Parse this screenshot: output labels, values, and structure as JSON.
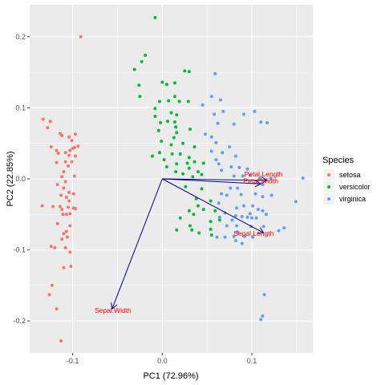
{
  "chart_data": {
    "type": "scatter",
    "title": "",
    "xlabel": "PC1 (72.96%)",
    "ylabel": "PC2 (22.85%)",
    "xlim": [
      -0.148,
      0.168
    ],
    "ylim": [
      -0.245,
      0.245
    ],
    "x_ticks": [
      -0.1,
      0.0,
      0.1
    ],
    "x_tick_labels": [
      "-0.1",
      "0.0",
      "0.1"
    ],
    "y_ticks": [
      -0.2,
      -0.1,
      0.0,
      0.1,
      0.2
    ],
    "y_tick_labels": [
      "-0.2",
      "-0.1",
      "0.0",
      "0.1",
      "0.2"
    ],
    "grid": true,
    "panel_background": "#ebebeb",
    "grid_color": "#ffffff",
    "arrow_color": "#00008b",
    "arrow_label_color": "#ff0000",
    "legend": {
      "title": "Species",
      "placement": "right",
      "entries": [
        {
          "name": "setosa",
          "color": "#f8766d"
        },
        {
          "name": "versicolor",
          "color": "#00ba38"
        },
        {
          "name": "virginica",
          "color": "#619cff"
        }
      ]
    },
    "series": [
      {
        "name": "setosa",
        "color": "#f8766d",
        "points": [
          [
            -0.091,
            0.2
          ],
          [
            -0.133,
            0.084
          ],
          [
            -0.125,
            0.081
          ],
          [
            -0.128,
            0.072
          ],
          [
            -0.114,
            0.064
          ],
          [
            -0.112,
            0.061
          ],
          [
            -0.104,
            0.059
          ],
          [
            -0.097,
            0.063
          ],
          [
            -0.101,
            0.054
          ],
          [
            -0.1,
            0.043
          ],
          [
            -0.103,
            0.04
          ],
          [
            -0.094,
            0.046
          ],
          [
            -0.098,
            0.044
          ],
          [
            -0.124,
            0.045
          ],
          [
            -0.118,
            0.04
          ],
          [
            -0.108,
            0.037
          ],
          [
            -0.104,
            0.033
          ],
          [
            -0.116,
            0.036
          ],
          [
            -0.097,
            0.032
          ],
          [
            -0.108,
            0.024
          ],
          [
            -0.118,
            0.023
          ],
          [
            -0.101,
            0.024
          ],
          [
            -0.105,
            0.018
          ],
          [
            -0.11,
            0.01
          ],
          [
            -0.112,
            0.003
          ],
          [
            -0.098,
            0.004
          ],
          [
            -0.108,
            -0.004
          ],
          [
            -0.117,
            -0.008
          ],
          [
            -0.11,
            -0.013
          ],
          [
            -0.104,
            -0.019
          ],
          [
            -0.099,
            -0.021
          ],
          [
            -0.113,
            -0.023
          ],
          [
            -0.107,
            -0.026
          ],
          [
            -0.104,
            -0.031
          ],
          [
            -0.114,
            -0.039
          ],
          [
            -0.122,
            -0.039
          ],
          [
            -0.134,
            -0.038
          ],
          [
            -0.105,
            -0.04
          ],
          [
            -0.099,
            -0.041
          ],
          [
            -0.112,
            -0.043
          ],
          [
            -0.097,
            -0.042
          ],
          [
            -0.111,
            -0.05
          ],
          [
            -0.107,
            -0.05
          ],
          [
            -0.103,
            -0.049
          ],
          [
            -0.117,
            -0.063
          ],
          [
            -0.103,
            -0.066
          ],
          [
            -0.107,
            -0.074
          ],
          [
            -0.11,
            -0.077
          ],
          [
            -0.106,
            -0.082
          ],
          [
            -0.112,
            -0.085
          ],
          [
            -0.108,
            -0.097
          ],
          [
            -0.12,
            -0.097
          ],
          [
            -0.124,
            -0.095
          ],
          [
            -0.103,
            -0.103
          ],
          [
            -0.102,
            -0.123
          ],
          [
            -0.11,
            -0.125
          ],
          [
            -0.123,
            -0.15
          ],
          [
            -0.126,
            -0.163
          ],
          [
            -0.118,
            -0.183
          ],
          [
            -0.113,
            -0.228
          ]
        ]
      },
      {
        "name": "versicolor",
        "color": "#00ba38",
        "points": [
          [
            -0.008,
            0.227
          ],
          [
            -0.019,
            0.174
          ],
          [
            -0.023,
            0.165
          ],
          [
            -0.031,
            0.154
          ],
          [
            -0.026,
            0.132
          ],
          [
            -0.025,
            0.116
          ],
          [
            0.0,
            0.136
          ],
          [
            0.005,
            0.133
          ],
          [
            0.014,
            0.135
          ],
          [
            0.014,
            0.116
          ],
          [
            0.025,
            0.152
          ],
          [
            0.03,
            0.151
          ],
          [
            -0.003,
            0.109
          ],
          [
            0.007,
            0.11
          ],
          [
            0.019,
            0.109
          ],
          [
            0.029,
            0.109
          ],
          [
            -0.008,
            0.099
          ],
          [
            0.01,
            0.093
          ],
          [
            0.016,
            0.09
          ],
          [
            -0.008,
            0.088
          ],
          [
            0.006,
            0.081
          ],
          [
            0.014,
            0.08
          ],
          [
            -0.002,
            0.079
          ],
          [
            0.015,
            0.073
          ],
          [
            -0.004,
            0.068
          ],
          [
            0.016,
            0.065
          ],
          [
            0.013,
            0.058
          ],
          [
            0.031,
            0.07
          ],
          [
            -0.001,
            0.053
          ],
          [
            0.01,
            0.048
          ],
          [
            0.023,
            0.05
          ],
          [
            0.036,
            0.045
          ],
          [
            -0.003,
            0.037
          ],
          [
            0.011,
            0.035
          ],
          [
            0.02,
            0.035
          ],
          [
            0.03,
            0.03
          ],
          [
            -0.011,
            0.032
          ],
          [
            0.002,
            0.027
          ],
          [
            0.016,
            0.021
          ],
          [
            0.028,
            0.022
          ],
          [
            0.036,
            0.024
          ],
          [
            0.046,
            0.022
          ],
          [
            0.005,
            0.017
          ],
          [
            0.015,
            0.01
          ],
          [
            0.03,
            0.015
          ],
          [
            0.04,
            0.01
          ],
          [
            0.044,
            0.006
          ],
          [
            0.023,
            0.007
          ],
          [
            0.034,
            0.003
          ],
          [
            0.026,
            -0.011
          ],
          [
            0.044,
            -0.014
          ],
          [
            0.038,
            -0.028
          ],
          [
            0.054,
            -0.031
          ],
          [
            0.04,
            -0.038
          ],
          [
            0.03,
            -0.045
          ],
          [
            0.046,
            -0.043
          ],
          [
            0.059,
            -0.045
          ],
          [
            0.035,
            -0.05
          ],
          [
            0.02,
            -0.055
          ],
          [
            0.031,
            -0.066
          ],
          [
            0.054,
            -0.06
          ],
          [
            0.064,
            -0.058
          ],
          [
            0.016,
            -0.072
          ],
          [
            0.033,
            -0.072
          ],
          [
            0.054,
            -0.071
          ],
          [
            0.041,
            -0.076
          ],
          [
            0.055,
            -0.079
          ]
        ]
      },
      {
        "name": "virginica",
        "color": "#619cff",
        "points": [
          [
            0.059,
            0.148
          ],
          [
            0.055,
            0.116
          ],
          [
            0.045,
            0.104
          ],
          [
            0.065,
            0.111
          ],
          [
            0.058,
            0.091
          ],
          [
            0.068,
            0.095
          ],
          [
            0.062,
            0.078
          ],
          [
            0.048,
            0.063
          ],
          [
            0.055,
            0.059
          ],
          [
            0.08,
            0.077
          ],
          [
            0.091,
            0.091
          ],
          [
            0.103,
            0.095
          ],
          [
            0.11,
            0.08
          ],
          [
            0.117,
            0.079
          ],
          [
            0.06,
            0.051
          ],
          [
            0.075,
            0.045
          ],
          [
            0.055,
            0.039
          ],
          [
            0.067,
            0.037
          ],
          [
            0.082,
            0.032
          ],
          [
            0.06,
            0.027
          ],
          [
            0.063,
            0.021
          ],
          [
            0.077,
            0.017
          ],
          [
            0.086,
            0.016
          ],
          [
            0.095,
            0.014
          ],
          [
            0.066,
            0.012
          ],
          [
            0.08,
            0.004
          ],
          [
            0.09,
            0.004
          ],
          [
            0.098,
            0.005
          ],
          [
            0.109,
            0.001
          ],
          [
            0.121,
            0.001
          ],
          [
            0.157,
            0.001
          ],
          [
            0.112,
            -0.008
          ],
          [
            0.076,
            -0.013
          ],
          [
            0.084,
            -0.013
          ],
          [
            0.066,
            -0.021
          ],
          [
            0.072,
            -0.023
          ],
          [
            0.088,
            -0.022
          ],
          [
            0.104,
            -0.021
          ],
          [
            0.112,
            -0.025
          ],
          [
            0.122,
            -0.023
          ],
          [
            0.063,
            -0.034
          ],
          [
            0.091,
            -0.038
          ],
          [
            0.101,
            -0.038
          ],
          [
            0.149,
            -0.032
          ],
          [
            0.083,
            -0.041
          ],
          [
            0.107,
            -0.043
          ],
          [
            0.112,
            -0.045
          ],
          [
            0.07,
            -0.048
          ],
          [
            0.098,
            -0.049
          ],
          [
            0.116,
            -0.05
          ],
          [
            0.082,
            -0.052
          ],
          [
            0.089,
            -0.053
          ],
          [
            0.095,
            -0.054
          ],
          [
            0.064,
            -0.054
          ],
          [
            0.1,
            -0.055
          ],
          [
            0.105,
            -0.055
          ],
          [
            0.078,
            -0.058
          ],
          [
            0.072,
            -0.066
          ],
          [
            0.083,
            -0.066
          ],
          [
            0.099,
            -0.067
          ],
          [
            0.113,
            -0.067
          ],
          [
            0.136,
            -0.069
          ],
          [
            0.084,
            -0.075
          ],
          [
            0.13,
            -0.073
          ],
          [
            0.061,
            -0.082
          ],
          [
            0.07,
            -0.082
          ],
          [
            0.08,
            -0.081
          ],
          [
            0.092,
            -0.081
          ],
          [
            0.101,
            -0.082
          ],
          [
            0.082,
            -0.087
          ],
          [
            0.089,
            -0.091
          ],
          [
            0.114,
            -0.163
          ],
          [
            0.112,
            -0.193
          ],
          [
            0.11,
            -0.198
          ]
        ]
      }
    ],
    "vectors": [
      {
        "name": "Sepal.Length",
        "x_end": 0.113,
        "y_end": -0.076,
        "label_x": 0.102,
        "label_y": -0.077
      },
      {
        "name": "Sepal.Width",
        "x_end": -0.056,
        "y_end": -0.183,
        "label_x": -0.055,
        "label_y": -0.185
      },
      {
        "name": "Petal.Length",
        "x_end": 0.117,
        "y_end": -0.002,
        "label_x": 0.113,
        "label_y": 0.007
      },
      {
        "name": "Petal.Width",
        "x_end": 0.11,
        "y_end": -0.007,
        "label_x": 0.11,
        "label_y": -0.003
      }
    ]
  }
}
